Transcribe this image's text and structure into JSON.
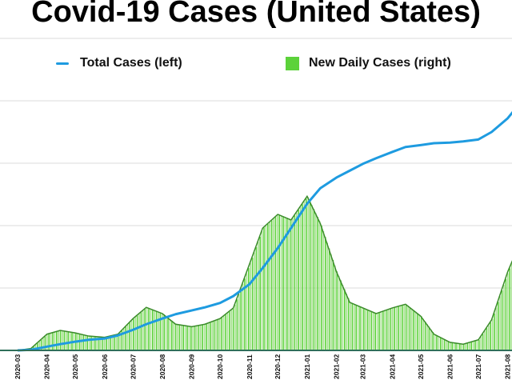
{
  "chart_data": {
    "type": "bar+line",
    "title": "Covid-19 Cases (United States)",
    "legend": {
      "placement": "top",
      "entries": [
        {
          "label": "Total Cases (left)",
          "color": "#1e9be0",
          "kind": "line"
        },
        {
          "label": "New Daily Cases (right)",
          "color": "#5cd23a",
          "kind": "bar"
        }
      ]
    },
    "x_tick_labels": [
      "2020-03",
      "2020-04",
      "2020-05",
      "2020-06",
      "2020-07",
      "2020-08",
      "2020-09",
      "2020-10",
      "2020-11",
      "2020-12",
      "2021-01",
      "2021-02",
      "2021-03",
      "2021-04",
      "2021-05",
      "2021-06",
      "2021-07",
      "2021-08"
    ],
    "y_tick_labels_shown": false,
    "grid": true,
    "ylim": [
      0,
      5
    ],
    "x": [
      "2020-03-01",
      "2020-03-15",
      "2020-04-01",
      "2020-04-15",
      "2020-05-01",
      "2020-05-15",
      "2020-06-01",
      "2020-06-15",
      "2020-07-01",
      "2020-07-15",
      "2020-08-01",
      "2020-08-15",
      "2020-09-01",
      "2020-09-15",
      "2020-10-01",
      "2020-10-15",
      "2020-11-01",
      "2020-11-15",
      "2020-12-01",
      "2020-12-15",
      "2021-01-01",
      "2021-01-15",
      "2021-02-01",
      "2021-02-15",
      "2021-03-01",
      "2021-03-15",
      "2021-04-01",
      "2021-04-15",
      "2021-05-01",
      "2021-05-15",
      "2021-06-01",
      "2021-06-15",
      "2021-07-01",
      "2021-07-15",
      "2021-08-01",
      "2021-08-08"
    ],
    "series": [
      {
        "name": "Total Cases (left)",
        "type": "line",
        "color": "#1e9be0",
        "values": [
          0,
          0.01,
          0.06,
          0.1,
          0.14,
          0.17,
          0.19,
          0.24,
          0.33,
          0.42,
          0.51,
          0.58,
          0.64,
          0.69,
          0.76,
          0.87,
          1.06,
          1.32,
          1.64,
          1.96,
          2.35,
          2.6,
          2.77,
          2.88,
          2.99,
          3.08,
          3.18,
          3.26,
          3.29,
          3.32,
          3.33,
          3.35,
          3.38,
          3.5,
          3.72,
          3.85
        ]
      },
      {
        "name": "New Daily Cases (right)",
        "type": "bar",
        "color": "#5cd23a",
        "smoothed_line_color": "#3a8a2a",
        "values": [
          0,
          0.03,
          0.26,
          0.32,
          0.28,
          0.23,
          0.21,
          0.26,
          0.51,
          0.69,
          0.59,
          0.42,
          0.38,
          0.42,
          0.51,
          0.68,
          1.38,
          1.96,
          2.18,
          2.09,
          2.47,
          2.03,
          1.26,
          0.77,
          0.68,
          0.59,
          0.68,
          0.74,
          0.55,
          0.26,
          0.13,
          0.1,
          0.17,
          0.49,
          1.26,
          1.51
        ]
      }
    ]
  }
}
